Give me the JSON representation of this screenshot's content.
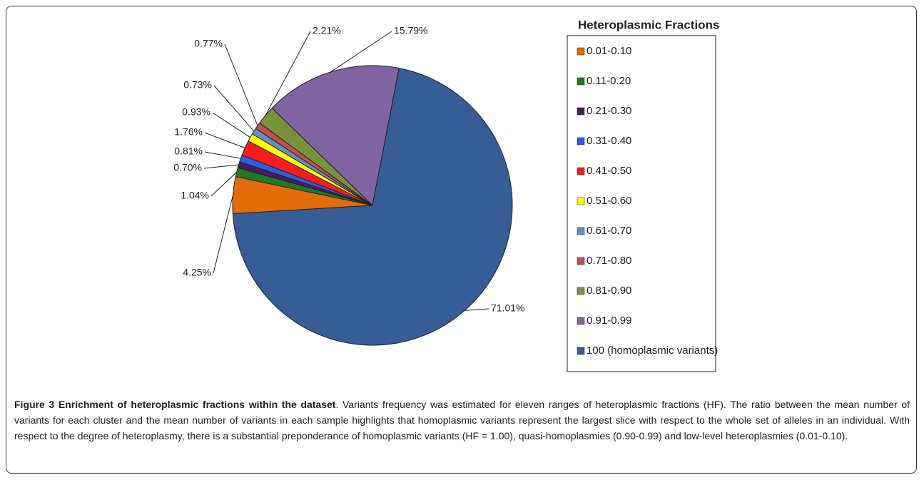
{
  "chart_data": {
    "type": "pie",
    "legend_title": "Heteroplasmic Fractions",
    "categories": [
      "0.01-0.10",
      "0.11-0.20",
      "0.21-0.30",
      "0.31-0.40",
      "0.41-0.50",
      "0.51-0.60",
      "0.61-0.70",
      "0.71-0.80",
      "0.81-0.90",
      "0.91-0.99",
      "100 (homoplasmic variants)"
    ],
    "values": [
      4.25,
      1.04,
      0.7,
      0.81,
      1.76,
      0.93,
      0.73,
      0.77,
      2.21,
      15.79,
      71.01
    ],
    "value_labels": [
      "4.25%",
      "1.04%",
      "0.70%",
      "0.81%",
      "1.76%",
      "0.93%",
      "0.73%",
      "0.77%",
      "2.21%",
      "15.79%",
      "71.01%"
    ],
    "colors": [
      "#e36c0a",
      "#1e7b1e",
      "#4b1a5e",
      "#2b5de3",
      "#f51d1d",
      "#ffff00",
      "#6391c6",
      "#c0504d",
      "#77933c",
      "#8064a2",
      "#375d96"
    ],
    "legend": "right"
  },
  "caption": {
    "label": "Figure 3 Enrichment of heteroplasmic fractions within the dataset",
    "text": ". Variants frequency was estimated for eleven ranges of heteroplasmic fractions (HF). The ratio between the mean number of variants for each cluster and the mean number of variants in each sample highlights that homoplasmic variants represent the largest slice with respect to the whole set of alleles in an individual. With respect to the degree of heteroplasmy, there is a substantial preponderance of homoplasmic variants (HF = 1.00), quasi-homoplasmies (0.90-0.99) and low-level heteroplasmies (0.01-0.10)."
  }
}
